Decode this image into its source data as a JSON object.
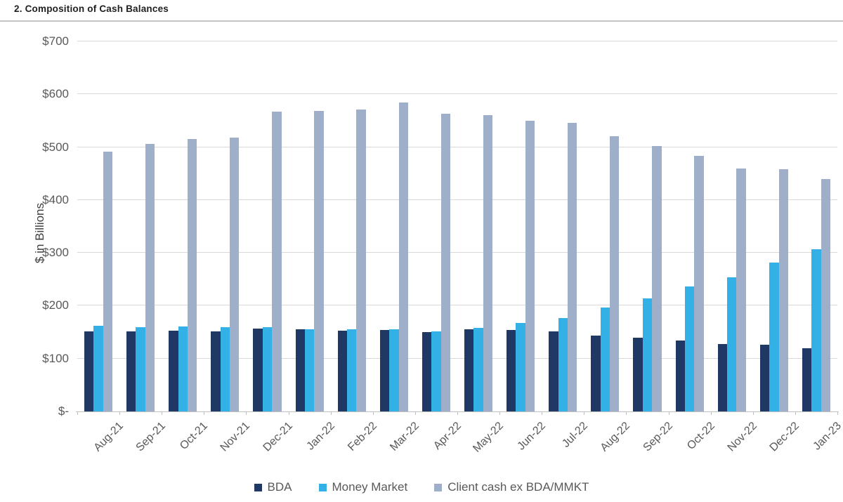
{
  "header": {
    "title": "2. Composition of Cash Balances"
  },
  "chart_data": {
    "type": "bar",
    "title": "2. Composition of Cash Balances",
    "xlabel": "",
    "ylabel": "$ in Billions",
    "ylim": [
      0,
      700
    ],
    "grid": "horizontal",
    "legend_position": "bottom",
    "y_ticks": [
      {
        "value": 700,
        "label": "$700"
      },
      {
        "value": 600,
        "label": "$600"
      },
      {
        "value": 500,
        "label": "$500"
      },
      {
        "value": 400,
        "label": "$400"
      },
      {
        "value": 300,
        "label": "$300"
      },
      {
        "value": 200,
        "label": "$200"
      },
      {
        "value": 100,
        "label": "$100"
      },
      {
        "value": 0,
        "label": "$-"
      }
    ],
    "categories": [
      "Aug-21",
      "Sep-21",
      "Oct-21",
      "Nov-21",
      "Dec-21",
      "Jan-22",
      "Feb-22",
      "Mar-22",
      "Apr-22",
      "May-22",
      "Jun-22",
      "Jul-22",
      "Aug-22",
      "Sep-22",
      "Oct-22",
      "Nov-22",
      "Dec-22",
      "Jan-23"
    ],
    "series": [
      {
        "name": "BDA",
        "color": "#1f3864",
        "values": [
          151,
          152,
          153,
          152,
          157,
          155,
          153,
          154,
          150,
          155,
          154,
          152,
          144,
          139,
          134,
          128,
          126,
          120
        ]
      },
      {
        "name": "Money Market",
        "color": "#33b1e6",
        "values": [
          162,
          160,
          161,
          160,
          159,
          156,
          156,
          155,
          151,
          158,
          168,
          177,
          196,
          214,
          236,
          254,
          282,
          307
        ]
      },
      {
        "name": "Client cash ex BDA/MMKT",
        "color": "#9fafca",
        "values": [
          492,
          506,
          515,
          518,
          567,
          568,
          571,
          585,
          563,
          561,
          550,
          546,
          521,
          502,
          484,
          460,
          458,
          440
        ]
      }
    ]
  },
  "colors": {
    "gridline": "#d9d9d9",
    "axis": "#bfbfbf",
    "tick_text": "#595959",
    "title_text": "#1f1f1f"
  }
}
